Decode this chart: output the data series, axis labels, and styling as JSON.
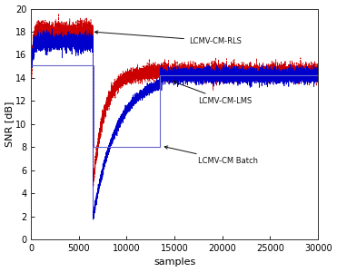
{
  "title": "",
  "xlabel": "samples",
  "ylabel": "SNR [dB]",
  "xlim": [
    0,
    30000
  ],
  "ylim": [
    0,
    20
  ],
  "yticks": [
    0,
    2,
    4,
    6,
    8,
    10,
    12,
    14,
    16,
    18,
    20
  ],
  "xticks": [
    0,
    5000,
    10000,
    15000,
    20000,
    25000,
    30000
  ],
  "packet1_end": 6500,
  "packet2_start": 13500,
  "rls_packet1_mean": 18.0,
  "rls_packet2_mean": 14.5,
  "lms_packet1_mean": 17.1,
  "lms_packet2_mean": 14.2,
  "batch_packet1_level": 15.1,
  "batch_packet2_level": 14.2,
  "background_color": "#ffffff",
  "rls_color": "#cc0000",
  "lms_color": "#0000cc",
  "batch_color": "#6666cc",
  "annotation_color": "#111111",
  "seed": 42
}
